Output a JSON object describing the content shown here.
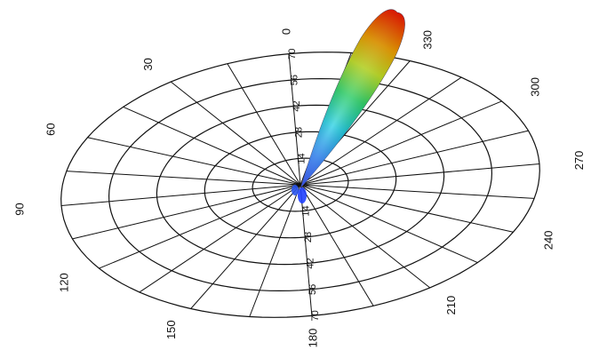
{
  "chart_data": {
    "type": "polar-3d-radiation-pattern",
    "title": "",
    "angular_tick_labels": [
      "0",
      "30",
      "60",
      "90",
      "120",
      "150",
      "180",
      "210",
      "240",
      "270",
      "300",
      "330"
    ],
    "angular_unit": "degrees",
    "radial_tick_labels": [
      "14",
      "28",
      "42",
      "56",
      "70"
    ],
    "radial_range": [
      0,
      70
    ],
    "main_lobe": {
      "direction_deg": 345,
      "peak_value": 70,
      "color_scale": [
        "#1f3cff",
        "#00c8ff",
        "#22dd66",
        "#ccee22",
        "#ffcc00",
        "#ff2200"
      ]
    },
    "grid": true,
    "legend": "none"
  }
}
